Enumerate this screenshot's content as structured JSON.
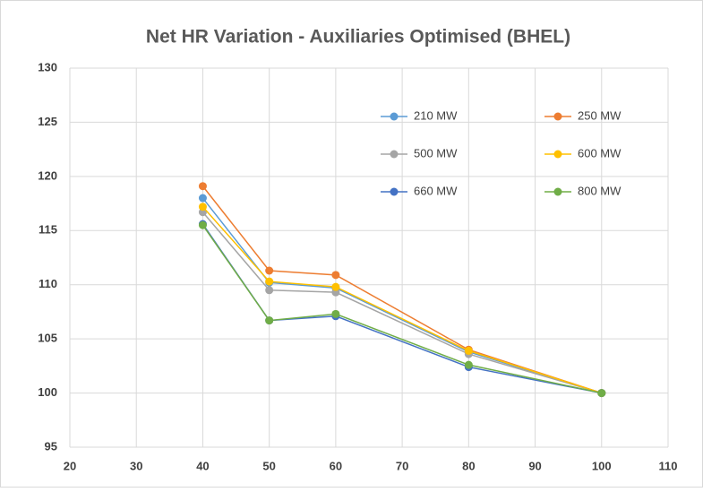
{
  "chart_data": {
    "type": "line",
    "title": "Net HR Variation - Auxiliaries Optimised (BHEL)",
    "x": [
      40,
      50,
      60,
      80,
      100
    ],
    "series": [
      {
        "name": "210 MW",
        "color": "#5b9bd5",
        "values": [
          118.0,
          110.2,
          109.7,
          103.8,
          100
        ]
      },
      {
        "name": "250 MW",
        "color": "#ed7d31",
        "values": [
          119.1,
          111.3,
          110.9,
          104.0,
          100
        ]
      },
      {
        "name": "500 MW",
        "color": "#a5a5a5",
        "values": [
          116.7,
          109.5,
          109.3,
          103.6,
          100
        ]
      },
      {
        "name": "600 MW",
        "color": "#ffc000",
        "values": [
          117.2,
          110.3,
          109.8,
          103.9,
          100
        ]
      },
      {
        "name": "660 MW",
        "color": "#4472c4",
        "values": [
          115.6,
          106.7,
          107.1,
          102.4,
          100
        ]
      },
      {
        "name": "800 MW",
        "color": "#70ad47",
        "values": [
          115.5,
          106.7,
          107.3,
          102.6,
          100
        ]
      }
    ],
    "xlim": [
      20,
      110
    ],
    "xticks": [
      20,
      30,
      40,
      50,
      60,
      70,
      80,
      90,
      100,
      110
    ],
    "ylim": [
      95,
      130
    ],
    "yticks": [
      95,
      100,
      105,
      110,
      115,
      120,
      125,
      130
    ],
    "grid": true,
    "legend": "upper right"
  }
}
